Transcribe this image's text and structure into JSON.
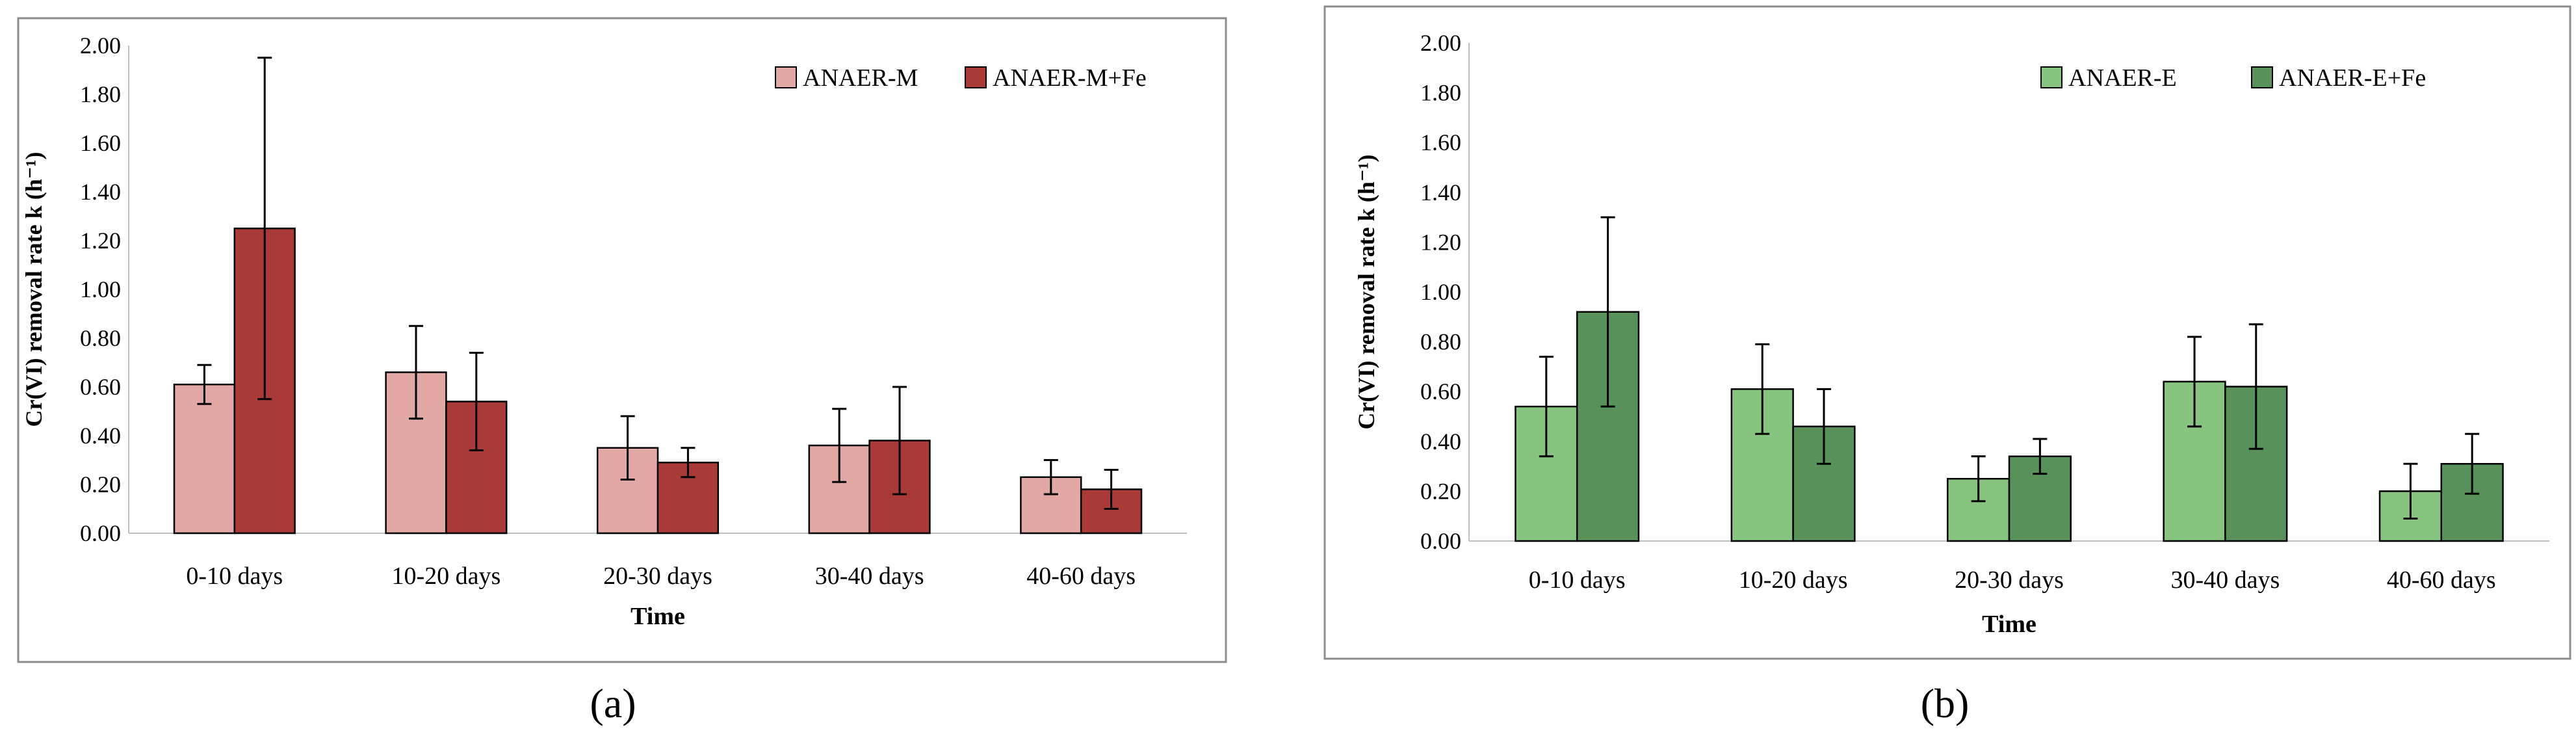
{
  "chart_data": [
    {
      "type": "bar",
      "panel_label": "(a)",
      "title": "",
      "xlabel": "Time",
      "ylabel": "Cr(VI) removal rate k (h⁻¹)",
      "ylim": [
        0,
        2
      ],
      "yticks": [
        "0.00",
        "0.20",
        "0.40",
        "0.60",
        "0.80",
        "1.00",
        "1.20",
        "1.40",
        "1.60",
        "1.80",
        "2.00"
      ],
      "categories": [
        "0-10 days",
        "10-20 days",
        "20-30 days",
        "30-40 days",
        "40-60 days"
      ],
      "legend_position": "top-right",
      "series": [
        {
          "name": "ANAER-M",
          "color": "#E2A8A6",
          "values": [
            0.61,
            0.66,
            0.35,
            0.36,
            0.23
          ],
          "errors": [
            0.08,
            0.19,
            0.13,
            0.15,
            0.07
          ]
        },
        {
          "name": "ANAER-M+Fe",
          "color": "#A93A38",
          "values": [
            1.25,
            0.54,
            0.29,
            0.38,
            0.18
          ],
          "errors": [
            0.7,
            0.2,
            0.06,
            0.22,
            0.08
          ]
        }
      ]
    },
    {
      "type": "bar",
      "panel_label": "(b)",
      "title": "",
      "xlabel": "Time",
      "ylabel": "Cr(VI) removal rate k (h⁻¹)",
      "ylim": [
        0,
        2
      ],
      "yticks": [
        "0.00",
        "0.20",
        "0.40",
        "0.60",
        "0.80",
        "1.00",
        "1.20",
        "1.40",
        "1.60",
        "1.80",
        "2.00"
      ],
      "categories": [
        "0-10 days",
        "10-20 days",
        "20-30 days",
        "30-40 days",
        "40-60 days"
      ],
      "legend_position": "top-right",
      "series": [
        {
          "name": "ANAER-E",
          "color": "#86C47F",
          "values": [
            0.54,
            0.61,
            0.25,
            0.64,
            0.2
          ],
          "errors": [
            0.2,
            0.18,
            0.09,
            0.18,
            0.11
          ]
        },
        {
          "name": "ANAER-E+Fe",
          "color": "#58925A",
          "values": [
            0.92,
            0.46,
            0.34,
            0.62,
            0.31
          ],
          "errors": [
            0.38,
            0.15,
            0.07,
            0.25,
            0.12
          ]
        }
      ]
    }
  ]
}
